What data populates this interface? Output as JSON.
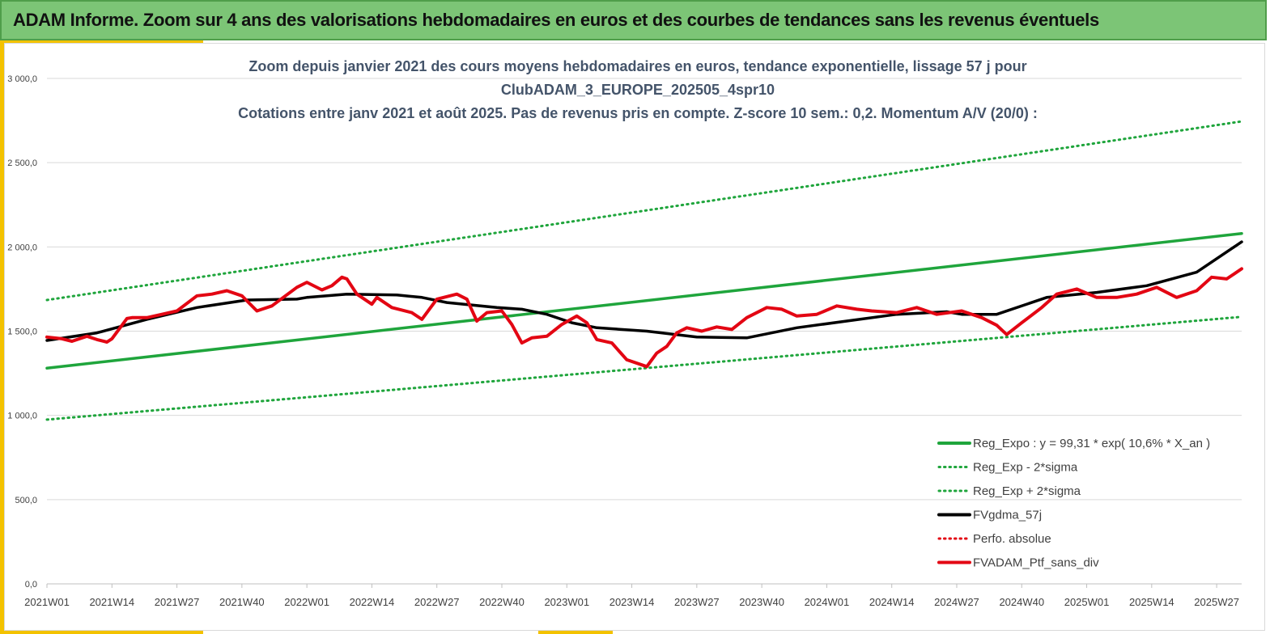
{
  "banner": {
    "title": "ADAM Informe. Zoom sur 4 ans des valorisations hebdomadaires en euros et des courbes de tendances sans les revenus éventuels"
  },
  "colors": {
    "banner_bg": "#7cc576",
    "accent": "#f3c200",
    "green": "#1fa53c",
    "black": "#000000",
    "red": "#e30613"
  },
  "chart_data": {
    "type": "line",
    "title_lines": [
      "Zoom depuis janvier 2021 des cours moyens hebdomadaires  en euros, tendance exponentielle, lissage 57 j pour",
      "ClubADAM_3_EUROPE_202505_4spr10",
      "Cotations entre janv 2021 et août 2025. Pas de revenus pris en compte. Z-score 10 sem.: 0,2. Momentum A/V (20/0) :"
    ],
    "xlabel": "",
    "ylabel": "",
    "ylim": [
      0,
      3000
    ],
    "y_ticks": [
      "0,0",
      "500,0",
      "1 000,0",
      "1 500,0",
      "2 000,0",
      "2 500,0",
      "3 000,0"
    ],
    "x_ticks": [
      "2021W01",
      "2021W14",
      "2021W27",
      "2021W40",
      "2022W01",
      "2022W14",
      "2022W27",
      "2022W40",
      "2023W01",
      "2023W14",
      "2023W27",
      "2023W40",
      "2024W01",
      "2024W14",
      "2024W27",
      "2024W40",
      "2025W01",
      "2025W14",
      "2025W27"
    ],
    "x_range_weeks": [
      0,
      239
    ],
    "grid": "horizontal",
    "legend_position": "bottom-right",
    "series": [
      {
        "name": "Reg_Expo : y = 99,31 * exp( 10,6% *  X_an )",
        "style": "solid",
        "color": "#1fa53c",
        "x": [
          0,
          239
        ],
        "values": [
          1280,
          2080
        ]
      },
      {
        "name": "Reg_Exp - 2*sigma",
        "style": "dotted",
        "color": "#1fa53c",
        "x": [
          0,
          239
        ],
        "values": [
          975,
          1585
        ]
      },
      {
        "name": "Reg_Exp + 2*sigma",
        "style": "dotted",
        "color": "#1fa53c",
        "x": [
          0,
          239
        ],
        "values": [
          1685,
          2745
        ]
      },
      {
        "name": "FVgdma_57j",
        "style": "solid",
        "color": "#000000",
        "x": [
          0,
          10,
          20,
          30,
          40,
          50,
          52,
          60,
          70,
          75,
          80,
          90,
          95,
          100,
          105,
          110,
          120,
          130,
          140,
          150,
          160,
          170,
          180,
          183,
          190,
          200,
          210,
          220,
          230,
          239
        ],
        "values": [
          1445,
          1490,
          1570,
          1640,
          1685,
          1690,
          1700,
          1720,
          1715,
          1700,
          1670,
          1640,
          1630,
          1600,
          1550,
          1520,
          1500,
          1465,
          1460,
          1520,
          1560,
          1600,
          1615,
          1600,
          1600,
          1700,
          1730,
          1770,
          1850,
          2030
        ]
      },
      {
        "name": "Perfo. absolue",
        "style": "dotted",
        "color": "#e30613",
        "x": [],
        "values": []
      },
      {
        "name": "FVADAM_Ptf_sans_div",
        "style": "solid",
        "color": "#e30613",
        "x": [
          0,
          3,
          5,
          8,
          10,
          12,
          13,
          16,
          17,
          20,
          23,
          26,
          30,
          33,
          36,
          39,
          40,
          42,
          45,
          50,
          52,
          55,
          57,
          59,
          60,
          62,
          65,
          66,
          69,
          73,
          75,
          78,
          82,
          84,
          86,
          88,
          91,
          93,
          95,
          97,
          100,
          103,
          106,
          108,
          110,
          113,
          116,
          120,
          122,
          124,
          126,
          128,
          131,
          134,
          137,
          140,
          142,
          144,
          147,
          150,
          154,
          158,
          162,
          165,
          170,
          174,
          178,
          183,
          187,
          190,
          192,
          195,
          199,
          202,
          206,
          210,
          214,
          218,
          222,
          226,
          230,
          233,
          236,
          239
        ],
        "values": [
          1465,
          1455,
          1440,
          1470,
          1450,
          1435,
          1455,
          1575,
          1580,
          1580,
          1600,
          1620,
          1710,
          1720,
          1740,
          1710,
          1680,
          1620,
          1650,
          1760,
          1790,
          1745,
          1770,
          1820,
          1810,
          1720,
          1660,
          1700,
          1640,
          1610,
          1570,
          1690,
          1720,
          1690,
          1560,
          1610,
          1620,
          1540,
          1430,
          1460,
          1470,
          1540,
          1590,
          1550,
          1450,
          1430,
          1330,
          1290,
          1370,
          1410,
          1490,
          1520,
          1500,
          1525,
          1510,
          1580,
          1610,
          1640,
          1630,
          1590,
          1600,
          1650,
          1630,
          1620,
          1610,
          1640,
          1600,
          1620,
          1580,
          1535,
          1480,
          1550,
          1640,
          1720,
          1750,
          1700,
          1700,
          1720,
          1760,
          1700,
          1740,
          1820,
          1810,
          1870
        ]
      }
    ]
  },
  "legend": [
    {
      "label": "Reg_Expo : y = 99,31 * exp( 10,6% *  X_an )",
      "style": "solid",
      "color": "#1fa53c"
    },
    {
      "label": "Reg_Exp - 2*sigma",
      "style": "dotted",
      "color": "#1fa53c"
    },
    {
      "label": "Reg_Exp + 2*sigma",
      "style": "dotted",
      "color": "#1fa53c"
    },
    {
      "label": "FVgdma_57j",
      "style": "solid",
      "color": "#000000"
    },
    {
      "label": "Perfo. absolue",
      "style": "dotted",
      "color": "#e30613"
    },
    {
      "label": "FVADAM_Ptf_sans_div",
      "style": "solid",
      "color": "#e30613"
    }
  ]
}
